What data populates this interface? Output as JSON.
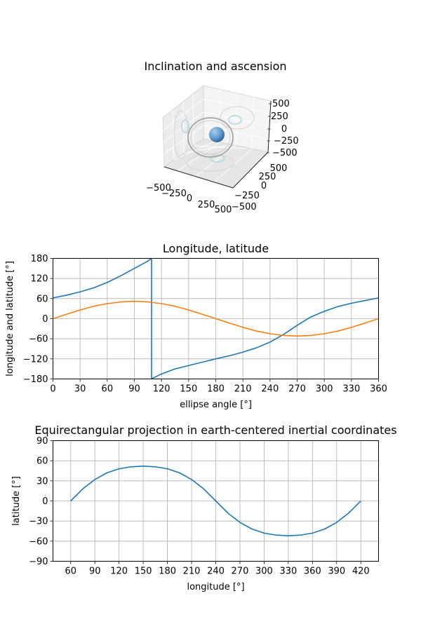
{
  "chart_data": [
    {
      "type": "3d-line",
      "title": "Inclination and ascension",
      "xlim": [
        -500,
        500
      ],
      "ylim": [
        -500,
        500
      ],
      "zlim": [
        -500,
        500
      ],
      "xticks": [
        "−500",
        "−250",
        "0",
        "250",
        "500"
      ],
      "yticks": [
        "−500",
        "−250",
        "0",
        "250",
        "500"
      ],
      "zticks": [
        "−500",
        "−250",
        "0",
        "250",
        "500"
      ],
      "grid": true,
      "colors": {
        "sphere": "#5b9bd0",
        "orbit": "#999999",
        "projection": "#add8e6",
        "pane": "#f2f2f2"
      }
    },
    {
      "type": "line",
      "title": "Longitude, latitude",
      "xlabel": "ellipse angle [°]",
      "ylabel": "longitude and latitude [°]",
      "xlim": [
        0,
        360
      ],
      "ylim": [
        -180,
        180
      ],
      "xticks": [
        0,
        30,
        60,
        90,
        120,
        150,
        180,
        210,
        240,
        270,
        300,
        330,
        360
      ],
      "yticks": [
        -180,
        -120,
        -60,
        0,
        60,
        120,
        180
      ],
      "grid": true,
      "series": [
        {
          "color": "#1f77b4",
          "x": [
            0,
            15,
            30,
            45,
            60,
            75,
            90,
            105,
            109,
            109,
            110,
            120,
            135,
            150,
            165,
            180,
            195,
            210,
            225,
            240,
            255,
            270,
            285,
            300,
            315,
            330,
            345,
            360
          ],
          "y": [
            62,
            70,
            80,
            92,
            108,
            128,
            150,
            172,
            180,
            -180,
            -178,
            -165,
            -150,
            -140,
            -130,
            -120,
            -111,
            -100,
            -87,
            -70,
            -47,
            -20,
            5,
            22,
            36,
            46,
            54,
            62
          ]
        },
        {
          "color": "#ff7f0e",
          "x": [
            0,
            15,
            30,
            45,
            60,
            75,
            90,
            105,
            120,
            135,
            150,
            165,
            180,
            195,
            210,
            225,
            240,
            255,
            270,
            285,
            300,
            315,
            330,
            345,
            360
          ],
          "y": [
            0,
            13,
            26,
            37,
            45,
            50,
            52,
            50,
            45,
            37,
            26,
            13,
            0,
            -13,
            -26,
            -37,
            -45,
            -50,
            -52,
            -50,
            -45,
            -37,
            -26,
            -13,
            0
          ]
        }
      ]
    },
    {
      "type": "line",
      "title": "Equirectangular projection in earth-centered inertial coordinates",
      "xlabel": "longitude [°]",
      "ylabel": "latitude [°]",
      "xlim": [
        38,
        442
      ],
      "ylim": [
        -90,
        90
      ],
      "xticks": [
        60,
        90,
        120,
        150,
        180,
        210,
        240,
        270,
        300,
        330,
        360,
        390,
        420
      ],
      "yticks": [
        -90,
        -60,
        -30,
        0,
        30,
        60,
        90
      ],
      "grid": true,
      "series": [
        {
          "color": "#1f77b4",
          "x": [
            60,
            75,
            90,
            105,
            120,
            135,
            150,
            165,
            180,
            195,
            210,
            225,
            240,
            255,
            270,
            285,
            300,
            315,
            330,
            345,
            360,
            375,
            390,
            405,
            420
          ],
          "y": [
            0,
            18,
            32,
            42,
            48,
            51,
            52,
            51,
            48,
            42,
            32,
            18,
            0,
            -18,
            -32,
            -42,
            -48,
            -51,
            -52,
            -51,
            -48,
            -42,
            -32,
            -18,
            0
          ]
        }
      ]
    }
  ]
}
